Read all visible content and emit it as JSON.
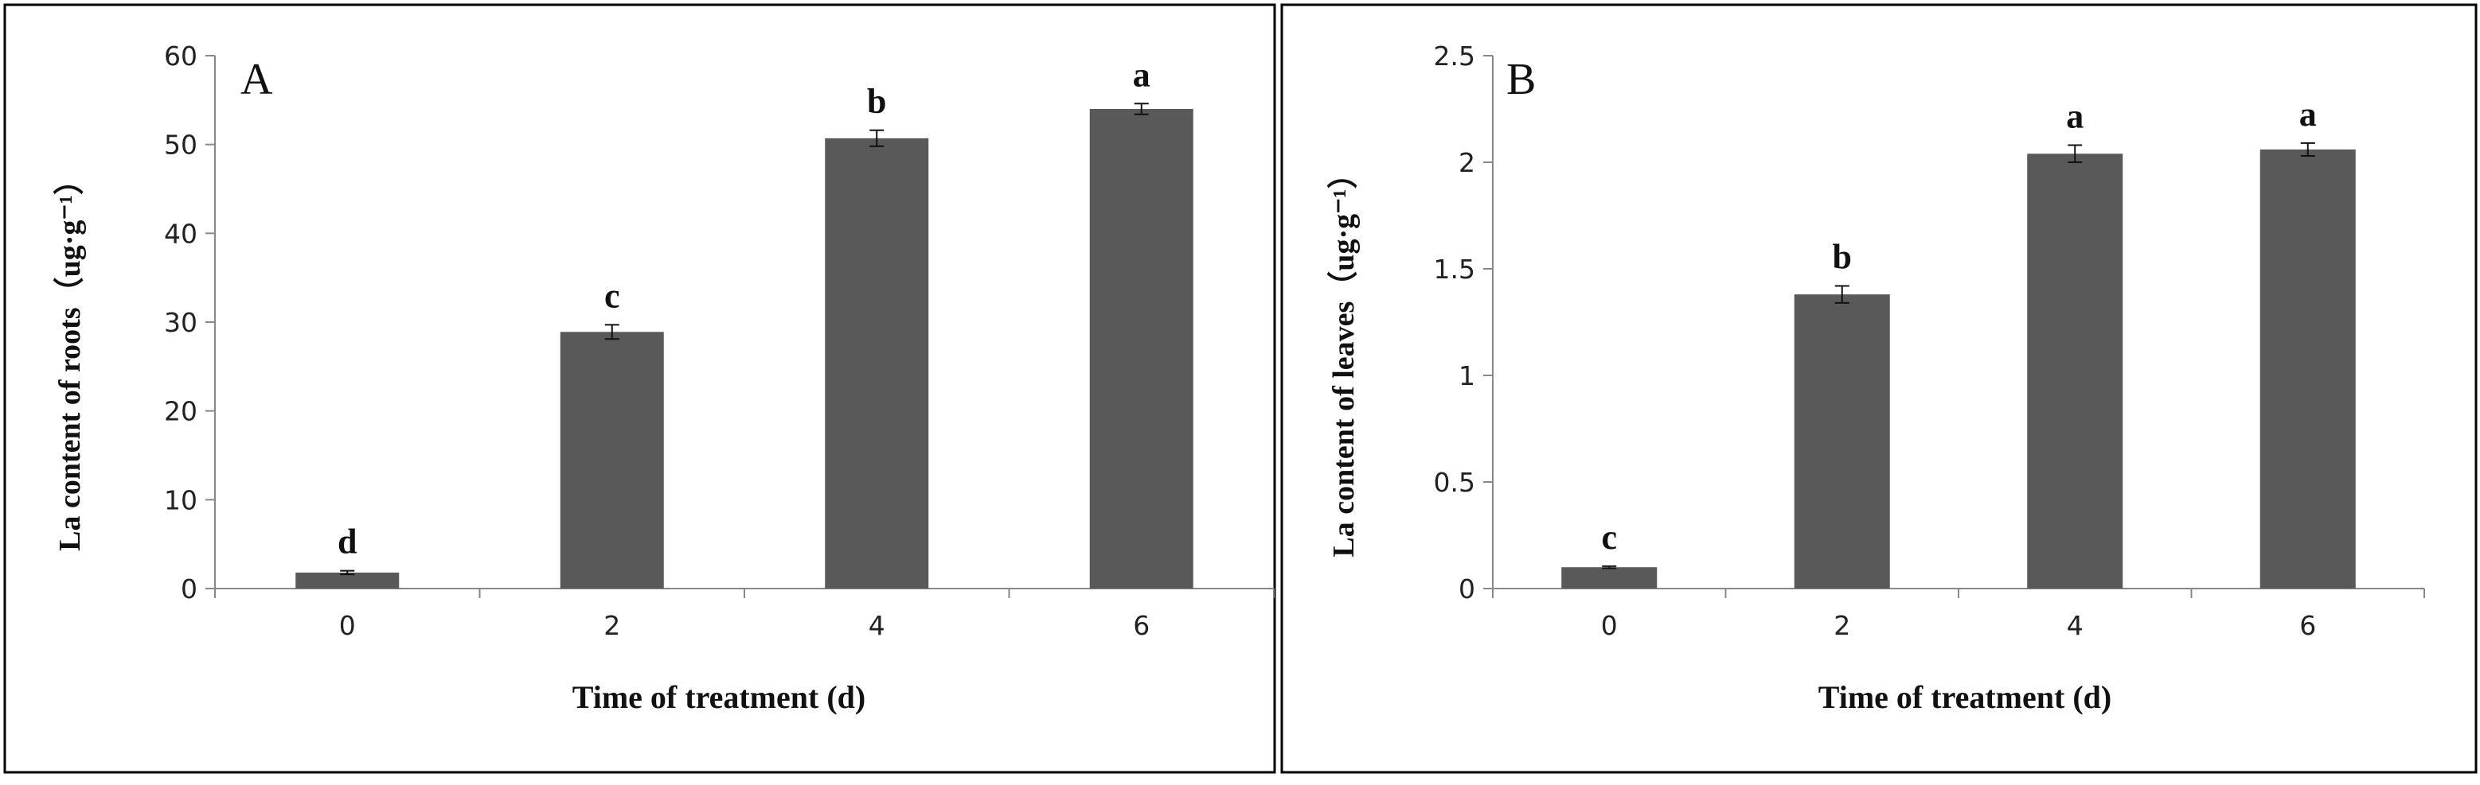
{
  "chart_data": [
    {
      "type": "bar",
      "panel_label": "A",
      "categories": [
        "0",
        "2",
        "4",
        "6"
      ],
      "values": [
        1.8,
        28.9,
        50.7,
        54.0
      ],
      "errors": [
        0.2,
        0.8,
        0.9,
        0.6
      ],
      "significance": [
        "d",
        "c",
        "b",
        "a"
      ],
      "xlabel": "Time of treatment (d)",
      "ylabel": "La content of roots（ug·g⁻¹）",
      "ylim": [
        0,
        60
      ],
      "yticks": [
        "0",
        "10",
        "20",
        "30",
        "40",
        "50",
        "60"
      ],
      "bar_color": "#595959",
      "grid": false
    },
    {
      "type": "bar",
      "panel_label": "B",
      "categories": [
        "0",
        "2",
        "4",
        "6"
      ],
      "values": [
        0.1,
        1.38,
        2.04,
        2.06
      ],
      "errors": [
        0.005,
        0.04,
        0.04,
        0.03
      ],
      "significance": [
        "c",
        "b",
        "a",
        "a"
      ],
      "xlabel": "Time of treatment (d)",
      "ylabel": "La content of leaves（ug·g⁻¹）",
      "ylim": [
        0,
        2.5
      ],
      "yticks": [
        "0",
        "0.5",
        "1",
        "1.5",
        "2",
        "2.5"
      ],
      "bar_color": "#595959",
      "grid": false
    }
  ]
}
